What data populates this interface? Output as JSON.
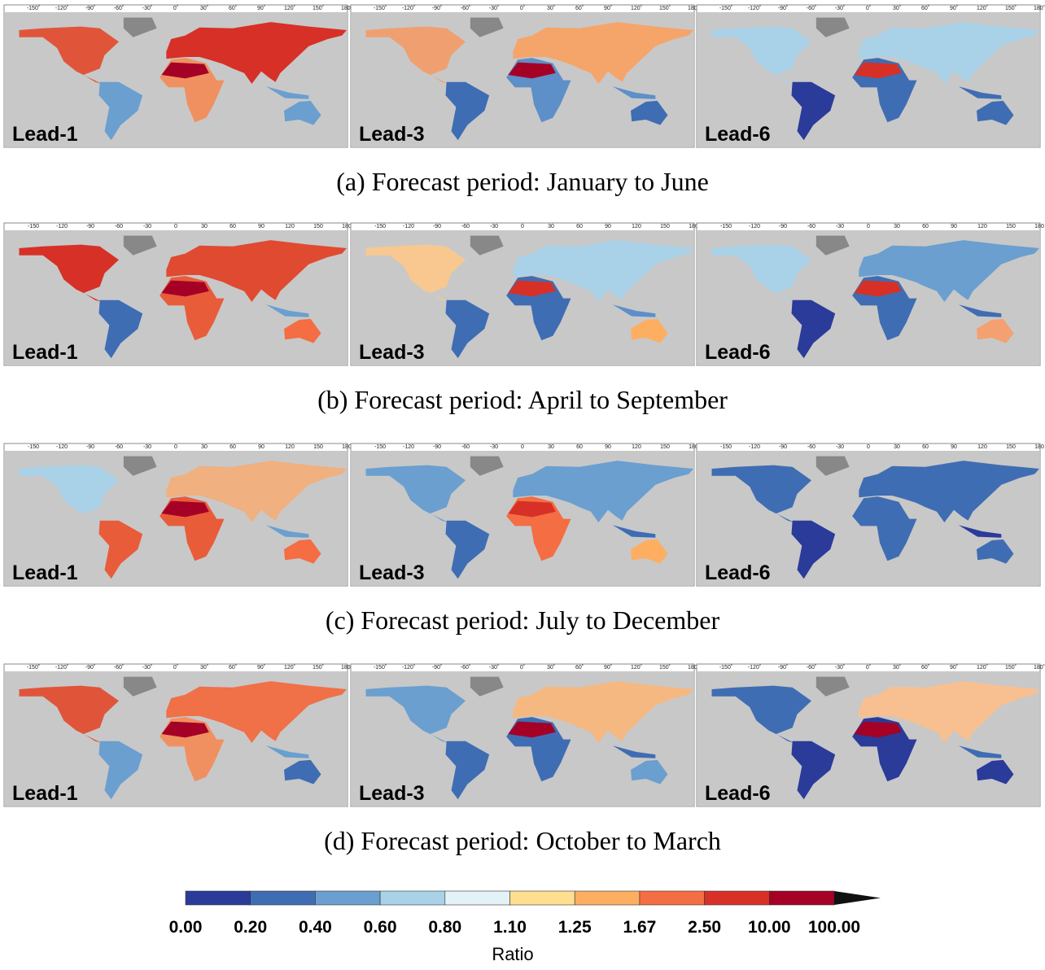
{
  "rows": [
    {
      "caption": "(a) Forecast period: January to June",
      "lon_ticks": [
        "-150˚",
        "-120˚",
        "-90˚",
        "-60˚",
        "-30˚",
        "0˚",
        "30˚",
        "60˚",
        "90˚",
        "120˚",
        "150˚",
        "180˚"
      ],
      "panels": [
        {
          "label": "Lead-1"
        },
        {
          "label": "Lead-3"
        },
        {
          "label": "Lead-6"
        }
      ]
    },
    {
      "caption": "(b) Forecast period: April to September",
      "lon_ticks": [
        "-150",
        "-120",
        "-90",
        "-60",
        "-30",
        "0",
        "30",
        "60",
        "90",
        "120",
        "150",
        "180"
      ],
      "panels": [
        {
          "label": "Lead-1"
        },
        {
          "label": "Lead-3"
        },
        {
          "label": "Lead-6"
        }
      ]
    },
    {
      "caption": "(c) Forecast period: July to December",
      "lon_ticks": [
        "-150",
        "-120",
        "-90",
        "-60",
        "-30",
        "0",
        "30",
        "60",
        "90",
        "120",
        "150",
        "180"
      ],
      "panels": [
        {
          "label": "Lead-1"
        },
        {
          "label": "Lead-3"
        },
        {
          "label": "Lead-6"
        }
      ]
    },
    {
      "caption": "(d) Forecast period: October to March",
      "lon_ticks": [
        "-150˚",
        "-120˚",
        "-90˚",
        "-60˚",
        "-30˚",
        "0˚",
        "30˚",
        "60˚",
        "90˚",
        "120˚",
        "150˚",
        "180˚"
      ],
      "panels": [
        {
          "label": "Lead-1"
        },
        {
          "label": "Lead-3"
        },
        {
          "label": "Lead-6"
        }
      ]
    }
  ],
  "colorbar": {
    "title": "Ratio",
    "labels": [
      "0.00",
      "0.20",
      "0.40",
      "0.60",
      "0.80",
      "1.10",
      "1.25",
      "1.67",
      "2.50",
      "10.00",
      "100.00"
    ],
    "colors": [
      "#2b3b9a",
      "#3f6db3",
      "#6a9fd0",
      "#a9d2e8",
      "#e3f2f6",
      "#fedf90",
      "#fdae61",
      "#f46d43",
      "#d73027",
      "#a50026",
      "#111111"
    ]
  }
}
